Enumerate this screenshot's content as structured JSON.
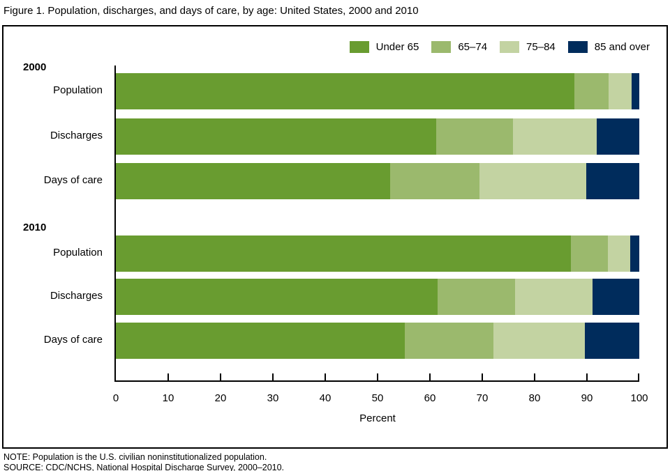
{
  "title": "Figure 1. Population, discharges, and days of care, by age: United States, 2000 and 2010",
  "note": "NOTE: Population is the U.S. civilian noninstitutionalized population.",
  "source": "SOURCE: CDC/NCHS, National Hospital Discharge Survey, 2000–2010.",
  "chart_data": {
    "type": "bar",
    "stacked": true,
    "orientation": "horizontal",
    "title": "Figure 1. Population, discharges, and days of care, by age: United States, 2000 and 2010",
    "xlabel": "Percent",
    "xlim": [
      0,
      100
    ],
    "xticks": [
      0,
      10,
      20,
      30,
      40,
      50,
      60,
      70,
      80,
      90,
      100
    ],
    "grid": false,
    "legend_position": "top-right-inside",
    "series": [
      "Under 65",
      "65–74",
      "75–84",
      "85 and over"
    ],
    "series_colors": [
      "#699c30",
      "#9bb96d",
      "#c3d3a2",
      "#002c5c"
    ],
    "groups": [
      {
        "label": "2000",
        "rows": [
          {
            "label": "Population",
            "values": [
              87.6,
              6.5,
              4.4,
              1.5
            ]
          },
          {
            "label": "Discharges",
            "values": [
              61.2,
              14.6,
              16.0,
              8.2
            ]
          },
          {
            "label": "Days of care",
            "values": [
              52.4,
              17.0,
              20.5,
              10.1
            ]
          }
        ]
      },
      {
        "label": "2010",
        "rows": [
          {
            "label": "Population",
            "values": [
              86.9,
              7.1,
              4.3,
              1.7
            ]
          },
          {
            "label": "Discharges",
            "values": [
              61.5,
              14.8,
              14.8,
              8.9
            ]
          },
          {
            "label": "Days of care",
            "values": [
              55.2,
              16.9,
              17.5,
              10.4
            ]
          }
        ]
      }
    ]
  }
}
